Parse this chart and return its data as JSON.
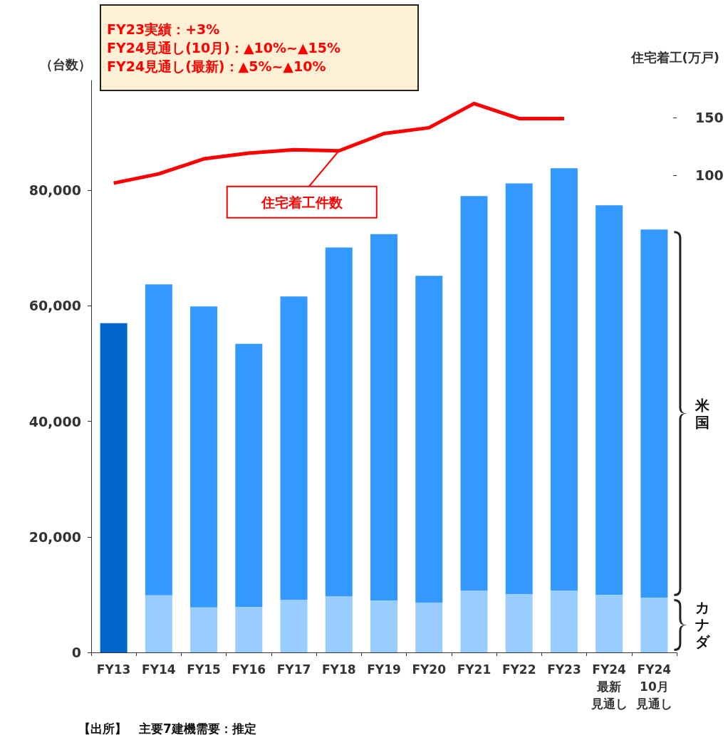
{
  "chart_data": {
    "type": "bar",
    "stacked": true,
    "ylabel": "（台数）",
    "y2label": "住宅着工(万戸)",
    "categories": [
      "FY13",
      "FY14",
      "FY15",
      "FY16",
      "FY17",
      "FY18",
      "FY19",
      "FY20",
      "FY21",
      "FY22",
      "FY23",
      "FY24最新見通し",
      "FY2410月見通し"
    ],
    "series": [
      {
        "name": "カナダ",
        "color": "#99ccff",
        "values": [
          null,
          9900,
          7800,
          7900,
          9100,
          9700,
          9000,
          8600,
          10700,
          10100,
          10700,
          10000,
          9500
        ]
      },
      {
        "name": "米国",
        "color": "#3399ff",
        "values": [
          null,
          53800,
          52100,
          45500,
          52500,
          60400,
          63400,
          56600,
          68300,
          71100,
          73100,
          67400,
          63700
        ]
      },
      {
        "color": "#0066cc",
        "values": [
          57000,
          null,
          null,
          null,
          null,
          null,
          null,
          null,
          null,
          null,
          null,
          null,
          null
        ]
      },
      {
        "type": "line",
        "name": "住宅着工件数",
        "axis": "y2",
        "color": "#ff0000",
        "values": [
          93,
          101,
          114,
          119,
          122,
          121,
          136,
          141,
          162,
          149,
          149,
          null,
          null
        ]
      }
    ],
    "ylim": [
      0,
      99000
    ],
    "yticks": [
      {
        "value": 0,
        "label": "0"
      },
      {
        "value": 20000,
        "label": "20,000"
      },
      {
        "value": 40000,
        "label": "40,000"
      },
      {
        "value": 60000,
        "label": "60,000"
      },
      {
        "value": 80000,
        "label": "80,000"
      }
    ],
    "y2lim": [
      -314,
      182
    ],
    "y2ticks": [
      100,
      150
    ],
    "marker": "none",
    "line_style": "solid",
    "annotations": [
      "FY23実績：+3%",
      "FY24見通し(10月)：▲10%~▲15%",
      "FY24見通し(最新)：▲5%~▲10%",
      "【出所】　主要7建機需要：推定"
    ]
  }
}
